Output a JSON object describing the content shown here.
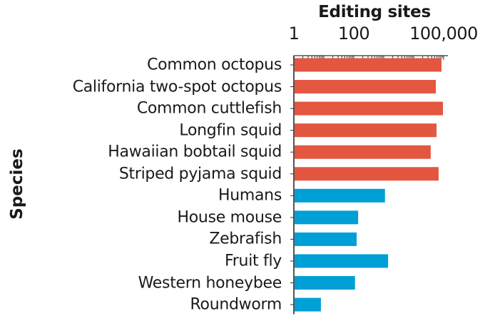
{
  "chart_data": {
    "type": "bar",
    "orientation": "horizontal",
    "title": "Editing sites",
    "xlabel": "Editing sites",
    "ylabel": "Species",
    "xscale": "log",
    "xlim": [
      1,
      150000
    ],
    "xtick_labels": [
      "1",
      "100",
      "100,000"
    ],
    "xtick_values": [
      1,
      100,
      100000
    ],
    "grid": false,
    "legend": null,
    "categories": [
      "Common octopus",
      "California two-spot octopus",
      "Common cuttlefish",
      "Longfin squid",
      "Hawaiian bobtail squid",
      "Striped pyjama squid",
      "Humans",
      "House mouse",
      "Zebrafish",
      "Fruit fly",
      "Western honeybee",
      "Roundworm"
    ],
    "values": [
      85000,
      55000,
      95000,
      58000,
      37000,
      68000,
      1100,
      140,
      125,
      1400,
      110,
      8
    ],
    "groups": [
      "cephalopod",
      "cephalopod",
      "cephalopod",
      "cephalopod",
      "cephalopod",
      "cephalopod",
      "other",
      "other",
      "other",
      "other",
      "other",
      "other"
    ],
    "colors": {
      "cephalopod": "#e35640",
      "other": "#009fd6"
    }
  }
}
